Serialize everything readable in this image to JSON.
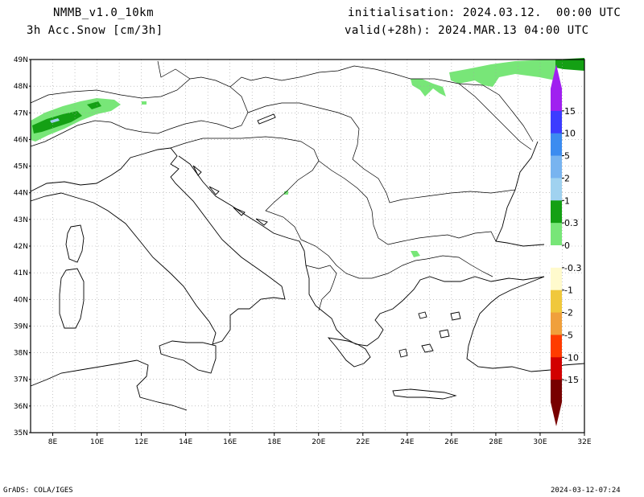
{
  "header": {
    "model": "NMMB_v1.0_10km",
    "variable": "3h Acc.Snow [cm/3h]",
    "init": "initialisation: 2024.03.12.  00:00 UTC",
    "valid": "valid(+28h): 2024.MAR.13 04:00 UTC"
  },
  "footer": {
    "left": "GrADS: COLA/IGES",
    "right": "2024-03-12-07:24"
  },
  "map": {
    "lon_labels": [
      "8E",
      "10E",
      "12E",
      "14E",
      "16E",
      "18E",
      "20E",
      "22E",
      "24E",
      "26E",
      "28E",
      "30E",
      "32E"
    ],
    "lat_labels": [
      "49N",
      "48N",
      "47N",
      "46N",
      "45N",
      "44N",
      "43N",
      "42N",
      "41N",
      "40N",
      "39N",
      "38N",
      "37N",
      "36N",
      "35N"
    ],
    "lon_range": [
      7,
      32
    ],
    "lat_range": [
      35,
      49
    ],
    "grid": true,
    "coastline_color": "#000000",
    "grid_color": "#a0a0a0"
  },
  "colorbar": {
    "labels": [
      "15",
      "10",
      "5",
      "2",
      "1",
      "0.3",
      "0",
      "-0.3",
      "-1",
      "-2",
      "-5",
      "-10",
      "-15"
    ],
    "colors": [
      "#a020f0",
      "#3c3cff",
      "#3c8cf0",
      "#78b4f0",
      "#a0d2f0",
      "#14a014",
      "#78e678",
      "#ffffff",
      "#fffacd",
      "#f0c83c",
      "#f0a03c",
      "#ff3c00",
      "#d20000",
      "#780000"
    ]
  }
}
